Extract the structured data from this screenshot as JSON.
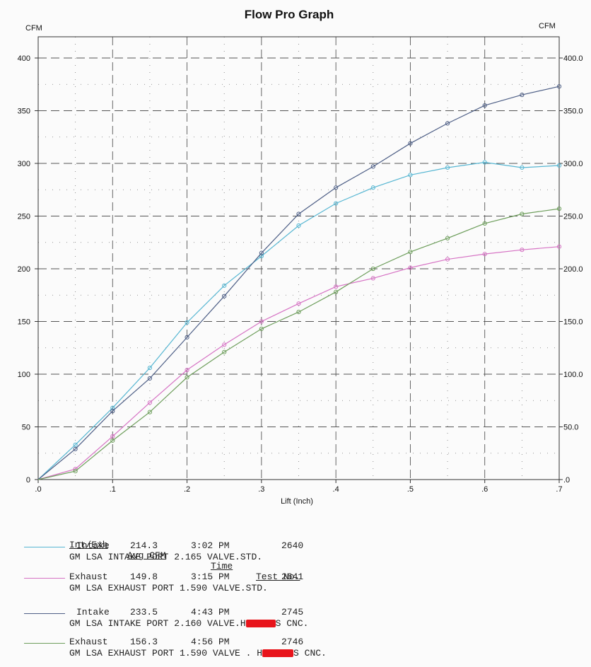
{
  "chart_data": {
    "type": "line",
    "title": "Flow Pro Graph",
    "xlabel": "Lift (Inch)",
    "ylabel_left": "CFM",
    "ylabel_right": "CFM",
    "xlim": [
      0,
      0.7
    ],
    "ylim": [
      0,
      420
    ],
    "x_ticks": [
      ".0",
      ".1",
      ".2",
      ".3",
      ".4",
      ".5",
      ".6",
      ".7"
    ],
    "y_ticks_left": [
      "0",
      "50",
      "100",
      "150",
      "200",
      "250",
      "300",
      "350",
      "400"
    ],
    "y_ticks_right": [
      ".0",
      "50.0",
      "100.0",
      "150.0",
      "200.0",
      "250.0",
      "300.0",
      "350.0",
      "400.0"
    ],
    "grid": true,
    "series": [
      {
        "color": "#56b6d2",
        "x": [
          0,
          0.05,
          0.1,
          0.15,
          0.2,
          0.25,
          0.3,
          0.35,
          0.4,
          0.45,
          0.5,
          0.55,
          0.6,
          0.65,
          0.7
        ],
        "values": [
          0,
          33,
          68,
          106,
          149,
          184,
          212,
          241,
          262,
          277,
          289,
          296,
          301,
          296,
          298
        ]
      },
      {
        "color": "#d673c4",
        "x": [
          0,
          0.05,
          0.1,
          0.15,
          0.2,
          0.25,
          0.3,
          0.35,
          0.4,
          0.45,
          0.5,
          0.55,
          0.6,
          0.65,
          0.7
        ],
        "values": [
          0,
          10,
          41,
          73,
          104,
          128,
          150,
          167,
          183,
          191,
          201,
          209,
          214,
          218,
          221
        ]
      },
      {
        "color": "#4e5f86",
        "x": [
          0,
          0.05,
          0.1,
          0.15,
          0.2,
          0.25,
          0.3,
          0.35,
          0.4,
          0.45,
          0.5,
          0.55,
          0.6,
          0.65,
          0.7
        ],
        "values": [
          0,
          29,
          65,
          96,
          135,
          174,
          215,
          252,
          277,
          297,
          319,
          338,
          355,
          365,
          373
        ]
      },
      {
        "color": "#6e9e5c",
        "x": [
          0,
          0.05,
          0.1,
          0.15,
          0.2,
          0.25,
          0.3,
          0.35,
          0.4,
          0.45,
          0.5,
          0.55,
          0.6,
          0.65,
          0.7
        ],
        "values": [
          0,
          8,
          37,
          64,
          97,
          121,
          143,
          159,
          178,
          200,
          216,
          229,
          243,
          252,
          257
        ]
      }
    ]
  },
  "legend": {
    "headers": {
      "int_exh": "Int/Exh",
      "avg_cfm": "Avg CFM",
      "time": "Time",
      "test_no": "Test No."
    },
    "entries": [
      {
        "color": "#56b6d2",
        "int_exh": "Intake",
        "avg_cfm": "214.3",
        "time": "3:02 PM",
        "test_no": "2640",
        "desc_a": "GM LSA INTAKE PORT 2.165 VALVE.STD.",
        "desc_b": ""
      },
      {
        "color": "#d673c4",
        "int_exh": "Exhaust",
        "avg_cfm": "149.8",
        "time": "3:15 PM",
        "test_no": "2641",
        "desc_a": "GM LSA EXHAUST PORT 1.590 VALVE.STD.",
        "desc_b": ""
      },
      {
        "color": "#4e5f86",
        "int_exh": "Intake",
        "avg_cfm": "233.5",
        "time": "4:43 PM",
        "test_no": "2745",
        "desc_a": "GM LSA INTAKE PORT 2.160 VALVE.H",
        "desc_b": "S CNC."
      },
      {
        "color": "#6e9e5c",
        "int_exh": "Exhaust",
        "avg_cfm": "156.3",
        "time": "4:56 PM",
        "test_no": "2746",
        "desc_a": "GM LSA EXHAUST PORT 1.590 VALVE . H",
        "desc_b": "S CNC."
      }
    ]
  }
}
